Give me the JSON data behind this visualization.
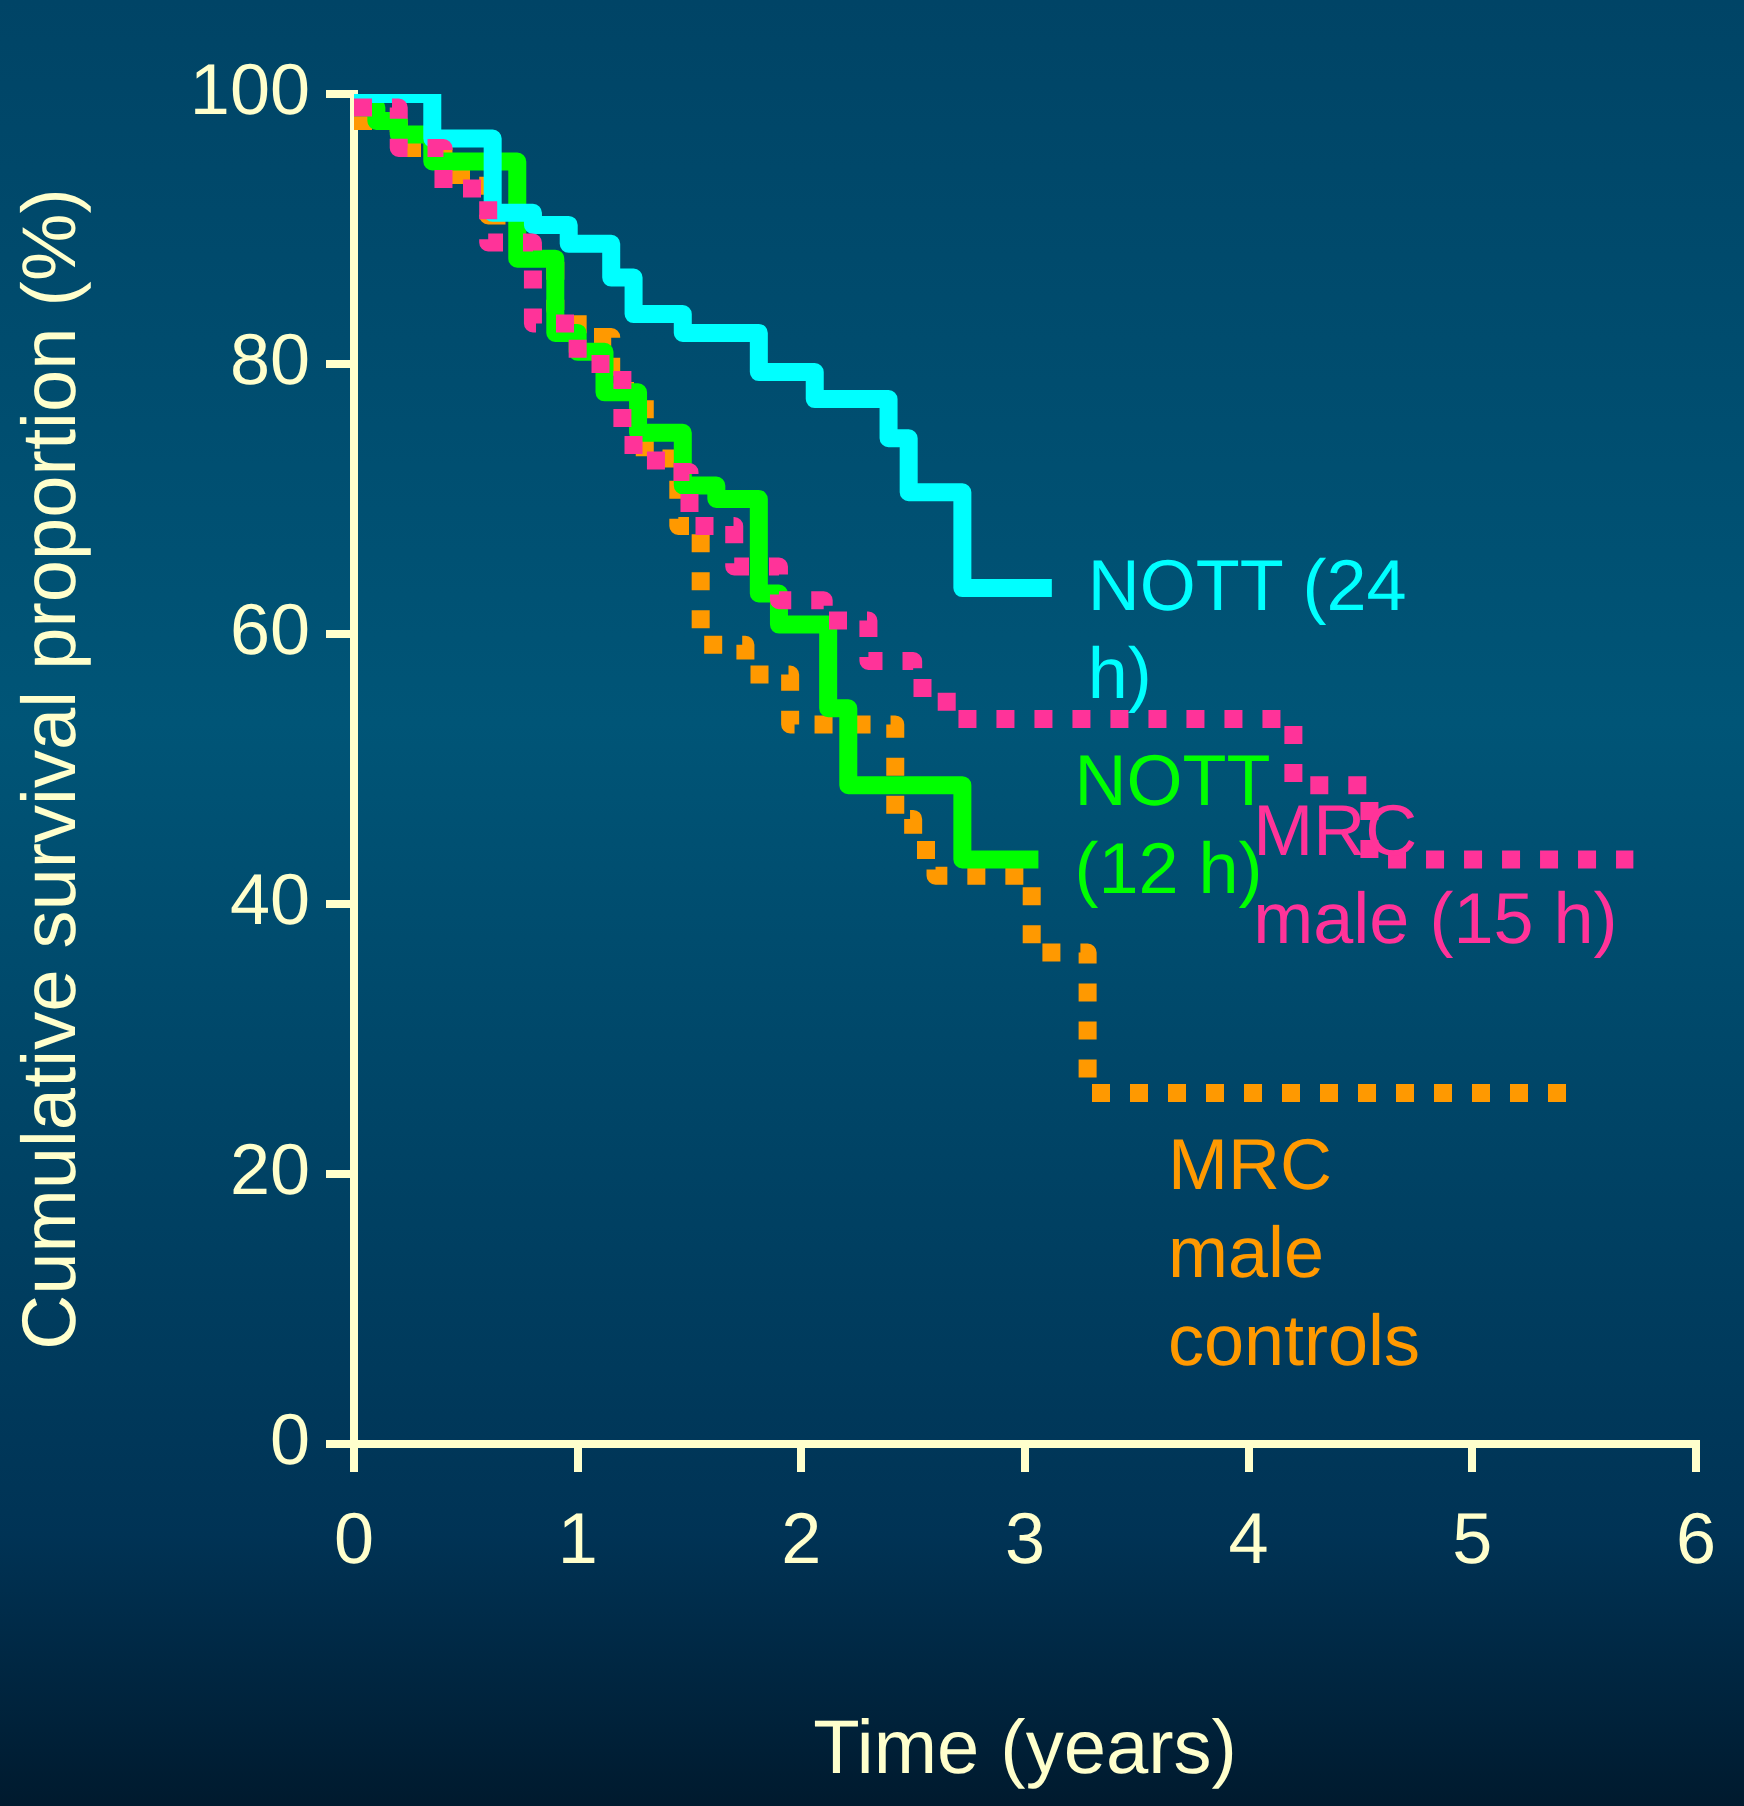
{
  "chart_data": {
    "type": "step",
    "xlabel": "Time (years)",
    "ylabel": "Cumulative survival proportion (%)",
    "xlim": [
      0,
      6
    ],
    "xticks": [
      0,
      1,
      2,
      3,
      4,
      5,
      6
    ],
    "ylim": [
      0,
      100
    ],
    "yticks": [
      0,
      20,
      40,
      60,
      80,
      100
    ],
    "grid": false,
    "legend": false,
    "series": [
      {
        "name": "NOTT (24 h)",
        "color": "#00ffff",
        "line_style": "solid",
        "x": [
          0,
          0.35,
          0.62,
          0.8,
          0.96,
          1.15,
          1.25,
          1.47,
          1.81,
          2.06,
          2.39,
          2.48,
          2.72,
          3.12
        ],
        "values": [
          100,
          96.7,
          91.2,
          90.3,
          88.9,
          86.4,
          83.7,
          82.3,
          79.4,
          77.4,
          74.5,
          70.5,
          63.4,
          63.4
        ]
      },
      {
        "name": "NOTT (12 h)",
        "color": "#00ff00",
        "line_style": "solid",
        "x": [
          0,
          0.1,
          0.2,
          0.35,
          0.73,
          0.9,
          1.0,
          1.12,
          1.27,
          1.47,
          1.62,
          1.81,
          1.9,
          2.12,
          2.21,
          2.72,
          3.06
        ],
        "values": [
          99,
          98,
          97,
          95,
          87.8,
          82.3,
          80.9,
          77.9,
          74.9,
          71,
          70,
          63,
          60.7,
          54.5,
          48.8,
          43.3,
          43.3
        ]
      },
      {
        "name": "MRC male (15 h)",
        "color": "#ff3399",
        "line_style": "dotted",
        "x": [
          0,
          0.2,
          0.4,
          0.6,
          0.8,
          1.0,
          1.2,
          1.35,
          1.5,
          1.7,
          1.9,
          2.1,
          2.3,
          2.5,
          2.65,
          4.2,
          4.54,
          5.72
        ],
        "values": [
          99,
          96,
          93,
          89,
          83,
          80,
          74,
          72,
          68,
          65,
          62.5,
          61,
          58,
          56,
          53.7,
          48.8,
          43.3,
          43.3
        ]
      },
      {
        "name": "MRC male controls",
        "color": "#ff9900",
        "line_style": "dotted",
        "x": [
          0,
          0.2,
          0.4,
          0.6,
          0.8,
          0.9,
          1.0,
          1.15,
          1.3,
          1.45,
          1.55,
          1.75,
          1.95,
          2.42,
          2.5,
          2.6,
          3.03,
          3.28,
          5.49
        ],
        "values": [
          98,
          96,
          94,
          91,
          88,
          84,
          82,
          78,
          73,
          68,
          59.2,
          57,
          53.3,
          46.3,
          44,
          42.1,
          36.4,
          26,
          26
        ]
      }
    ]
  }
}
